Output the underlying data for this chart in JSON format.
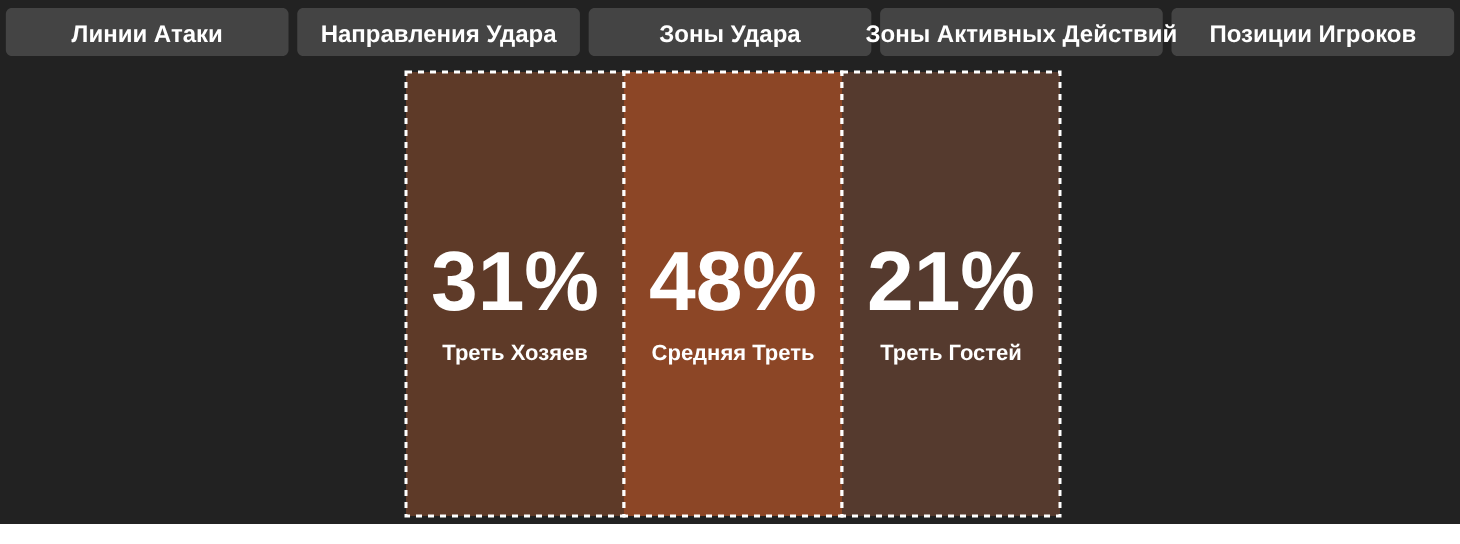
{
  "chart_data": {
    "type": "other",
    "categories": [
      "Треть Хозяев",
      "Средняя Треть",
      "Треть Гостей"
    ],
    "values": [
      31,
      48,
      21
    ],
    "value_labels": [
      "31%",
      "48%",
      "21%"
    ],
    "colors": [
      "#5e3a28",
      "#8c4626",
      "#553a2e"
    ],
    "annotations": [
      "Линии Атаки",
      "Направления Удара",
      "Зоны Удара",
      "Зоны Активных Действий",
      "Позиции Игроков"
    ]
  }
}
